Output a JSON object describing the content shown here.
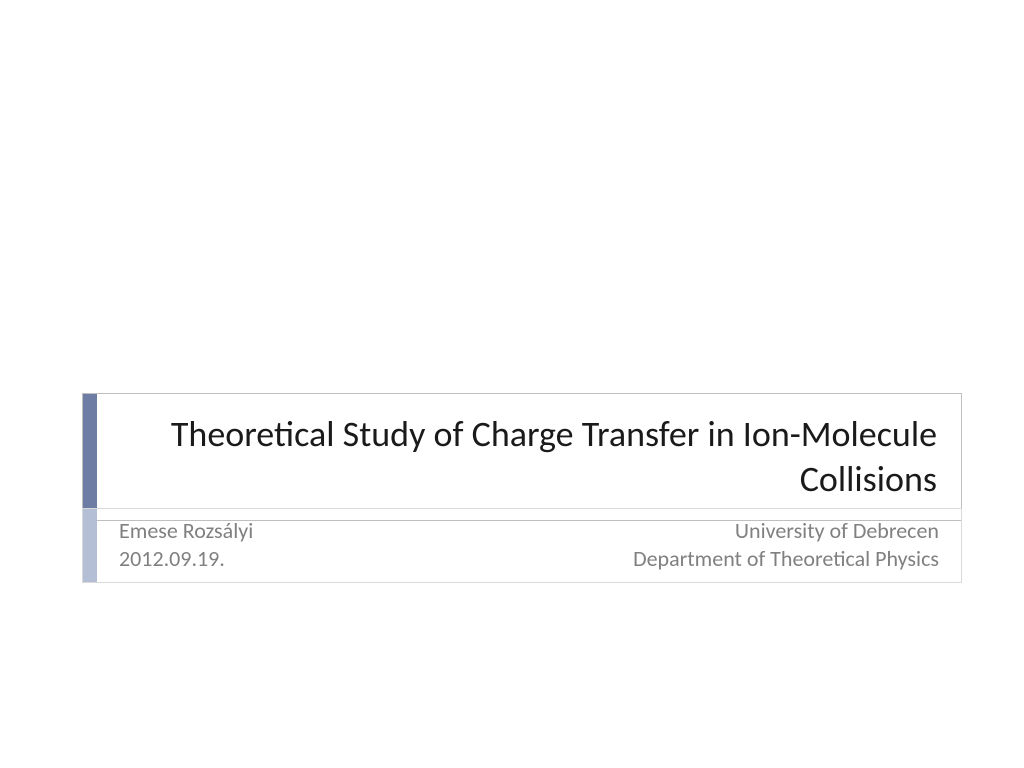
{
  "title": {
    "text": "Theoretical Study of Charge Transfer in Ion-Molecule Collisions",
    "accent_color": "#6d7da3",
    "border_color": "#bfbfbf",
    "font_size": 36,
    "text_color": "#1a1a1a"
  },
  "subtitle": {
    "author_name": "Emese Rozsályi",
    "date": "2012.09.19.",
    "institution": "University  of Debrecen",
    "department": "Department of Theoretical Physics",
    "accent_color": "#b4bed4",
    "border_color": "#d9d9d9",
    "font_size": 22,
    "text_color": "#808080"
  },
  "background_color": "#ffffff"
}
